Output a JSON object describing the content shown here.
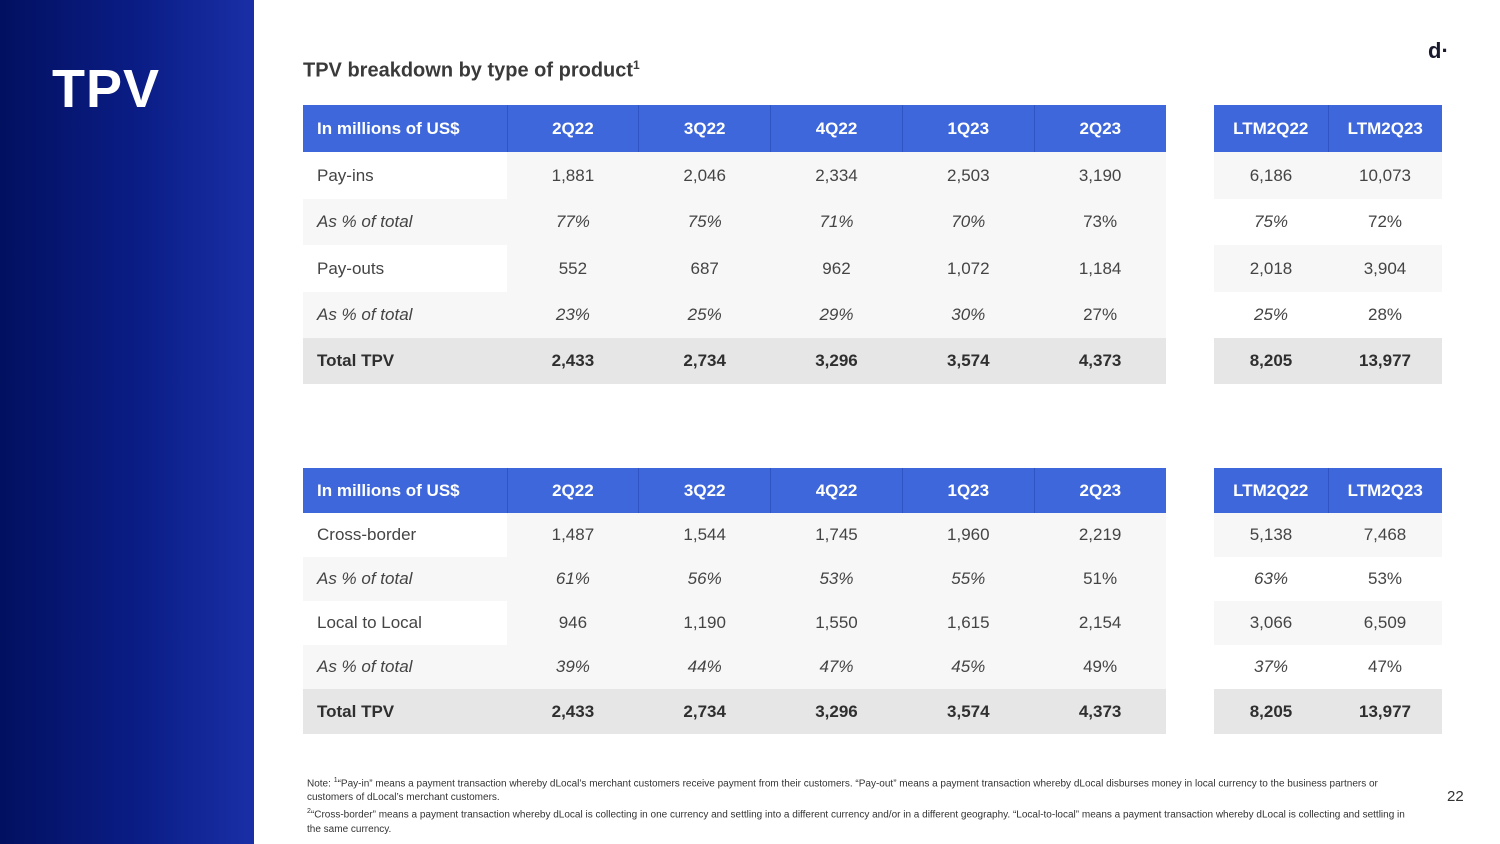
{
  "slide": {
    "title": "TPV",
    "logo": "d·",
    "page_number": "22"
  },
  "section": {
    "title": "TPV breakdown by type of product",
    "superscript": "1"
  },
  "table1": {
    "headers": [
      "In millions of US$",
      "2Q22",
      "3Q22",
      "4Q22",
      "1Q23",
      "2Q23"
    ],
    "rows": [
      [
        "Pay-ins",
        "1,881",
        "2,046",
        "2,334",
        "2,503",
        "3,190"
      ],
      [
        "As % of total",
        "77%",
        "75%",
        "71%",
        "70%",
        "73%"
      ],
      [
        "Pay-outs",
        "552",
        "687",
        "962",
        "1,072",
        "1,184"
      ],
      [
        "As % of total",
        "23%",
        "25%",
        "29%",
        "30%",
        "27%"
      ],
      [
        "Total TPV",
        "2,433",
        "2,734",
        "3,296",
        "3,574",
        "4,373"
      ]
    ]
  },
  "ltm1": {
    "headers": [
      "LTM2Q22",
      "LTM2Q23"
    ],
    "rows": [
      [
        "6,186",
        "10,073"
      ],
      [
        "75%",
        "72%"
      ],
      [
        "2,018",
        "3,904"
      ],
      [
        "25%",
        "28%"
      ],
      [
        "8,205",
        "13,977"
      ]
    ]
  },
  "table2": {
    "headers": [
      "In millions of US$",
      "2Q22",
      "3Q22",
      "4Q22",
      "1Q23",
      "2Q23"
    ],
    "rows": [
      [
        "Cross-border",
        "1,487",
        "1,544",
        "1,745",
        "1,960",
        "2,219"
      ],
      [
        "As % of total",
        "61%",
        "56%",
        "53%",
        "55%",
        "51%"
      ],
      [
        "Local to Local",
        "946",
        "1,190",
        "1,550",
        "1,615",
        "2,154"
      ],
      [
        "As % of total",
        "39%",
        "44%",
        "47%",
        "45%",
        "49%"
      ],
      [
        "Total TPV",
        "2,433",
        "2,734",
        "3,296",
        "3,574",
        "4,373"
      ]
    ]
  },
  "ltm2": {
    "headers": [
      "LTM2Q22",
      "LTM2Q23"
    ],
    "rows": [
      [
        "5,138",
        "7,468"
      ],
      [
        "63%",
        "53%"
      ],
      [
        "3,066",
        "6,509"
      ],
      [
        "37%",
        "47%"
      ],
      [
        "8,205",
        "13,977"
      ]
    ]
  },
  "note": {
    "prefix": "Note: ",
    "sup1": "1",
    "text1": "“Pay-in” means a payment transaction whereby dLocal’s merchant customers receive payment from their customers. “Pay-out” means a payment transaction whereby dLocal disburses money in local currency to the business partners or customers of dLocal’s merchant customers.",
    "sup2": "2",
    "text2": "“Cross-border” means a payment transaction whereby dLocal is collecting in one currency and settling into a different currency and/or in a different geography. “Local-to-local” means a payment transaction whereby dLocal is collecting and settling in the same currency."
  },
  "colors": {
    "panel": "#0a1d86",
    "header": "#3e67db",
    "total_row": "#e6e6e6"
  }
}
